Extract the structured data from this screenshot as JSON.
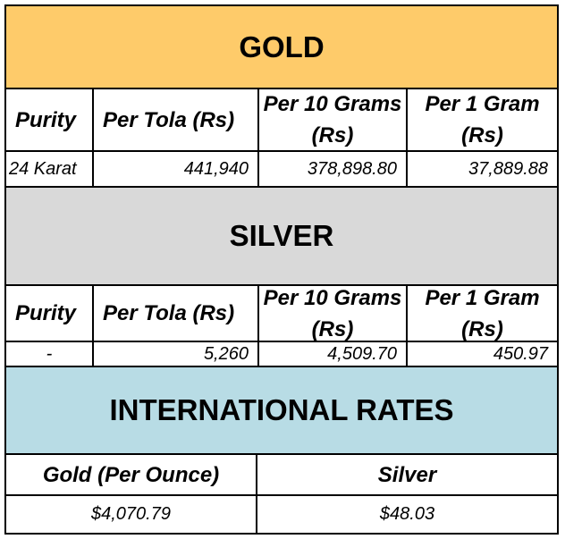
{
  "gold": {
    "title": "GOLD",
    "headers": {
      "purity": "Purity",
      "per_tola": "Per Tola (Rs)",
      "per_10_grams": "Per 10 Grams (Rs)",
      "per_1_gram": "Per 1 Gram (Rs)"
    },
    "row": {
      "purity": "24 Karat",
      "per_tola": "441,940",
      "per_10_grams": "378,898.80",
      "per_1_gram": "37,889.88"
    }
  },
  "silver": {
    "title": "SILVER",
    "headers": {
      "purity": "Purity",
      "per_tola": "Per Tola (Rs)",
      "per_10_grams": "Per 10 Grams (Rs)",
      "per_1_gram": "Per 1 Gram (Rs)"
    },
    "row": {
      "purity": "-",
      "per_tola": "5,260",
      "per_10_grams": "4,509.70",
      "per_1_gram": "450.97"
    }
  },
  "international": {
    "title": "INTERNATIONAL RATES",
    "headers": {
      "gold": "Gold (Per Ounce)",
      "silver": "Silver"
    },
    "row": {
      "gold": "$4,070.79",
      "silver": "$48.03"
    }
  },
  "colors": {
    "gold_band": "#FECB6A",
    "silver_band": "#D9D9D9",
    "international_band": "#B8DCE5"
  }
}
